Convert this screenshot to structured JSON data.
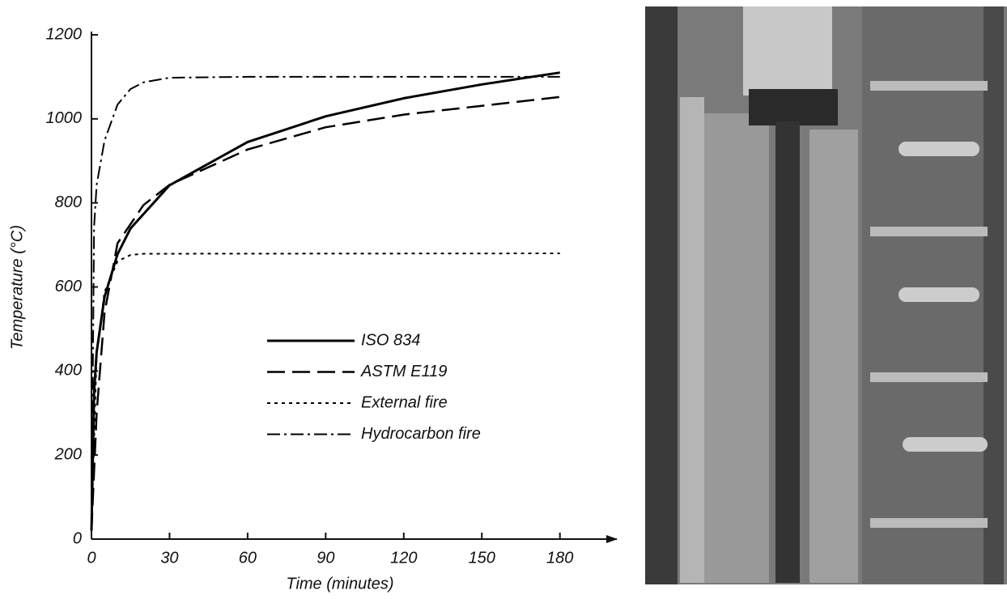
{
  "chart_data": {
    "type": "line",
    "x_label": "Time (minutes)",
    "y_label": "Temperature (°C)",
    "xlim": [
      0,
      200
    ],
    "ylim": [
      0,
      1200
    ],
    "xticks": [
      0,
      30,
      60,
      90,
      120,
      150,
      180
    ],
    "yticks": [
      0,
      200,
      400,
      600,
      800,
      1000,
      1200
    ],
    "grid": false,
    "series": [
      {
        "name": "ISO 834",
        "color": "#000000",
        "style": "solid",
        "x": [
          0,
          1,
          2,
          5,
          10,
          15,
          30,
          60,
          90,
          120,
          150,
          180
        ],
        "values": [
          20,
          349,
          445,
          576,
          678,
          739,
          842,
          945,
          1006,
          1049,
          1082,
          1110
        ]
      },
      {
        "name": "ASTM E119",
        "color": "#000000",
        "style": "dashed",
        "x": [
          0,
          2,
          5,
          10,
          20,
          30,
          60,
          90,
          120,
          150,
          180
        ],
        "values": [
          20,
          300,
          538,
          704,
          795,
          843,
          927,
          980,
          1010,
          1031,
          1052
        ]
      },
      {
        "name": "External fire",
        "color": "#000000",
        "style": "dotted",
        "x": [
          0,
          2,
          5,
          10,
          15,
          20,
          180
        ],
        "values": [
          20,
          441,
          588,
          661,
          676,
          679,
          680
        ]
      },
      {
        "name": "Hydrocarbon fire",
        "color": "#000000",
        "style": "dashdot",
        "x": [
          0,
          1,
          2,
          5,
          10,
          15,
          20,
          30,
          60,
          180
        ],
        "values": [
          20,
          743,
          843,
          948,
          1034,
          1071,
          1087,
          1098,
          1100,
          1100
        ]
      }
    ]
  }
}
